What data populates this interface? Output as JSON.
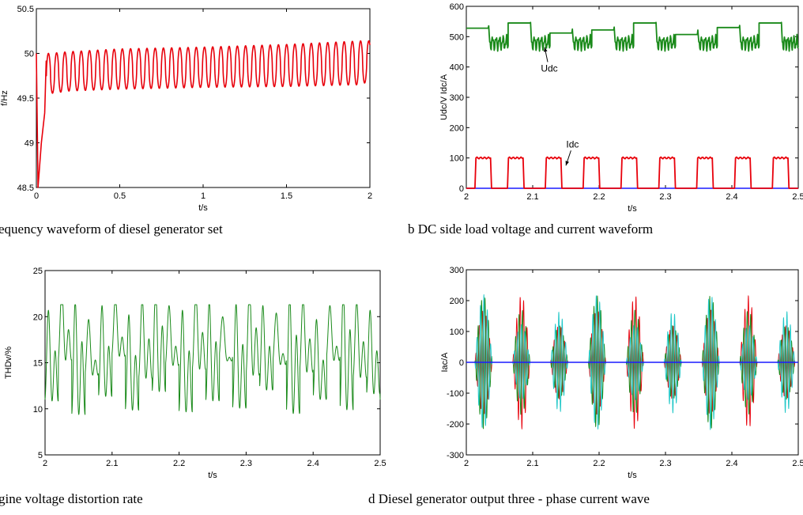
{
  "colors": {
    "red": "#e8000b",
    "green": "#1a8a1a",
    "dark_green": "#1f7a1f",
    "blue": "#1a1aff",
    "cyan": "#1fc7c7",
    "black": "#000000"
  },
  "captions": {
    "a": "equency waveform of diesel generator set",
    "b": "b DC side load voltage and current waveform",
    "c": "gine voltage distortion rate",
    "d": "d Diesel generator output three - phase current wave"
  },
  "chart_data": [
    {
      "id": "a",
      "type": "line",
      "xlabel": "t/s",
      "ylabel": "f/Hz",
      "xlim": [
        0,
        2
      ],
      "ylim": [
        48.5,
        50.5
      ],
      "xticks": [
        "0",
        "0.5",
        "1",
        "1.5",
        "2"
      ],
      "xtick_values": [
        0,
        0.5,
        1,
        1.5,
        2
      ],
      "yticks": [
        "48.5",
        "49",
        "49.5",
        "50",
        "50.5"
      ],
      "ytick_values": [
        48.5,
        49,
        49.5,
        50,
        50.5
      ],
      "series": [
        {
          "color": "#e8000b",
          "description": "initial dip to ~48.5 Hz then oscillation ~49.6–50.1 Hz, ~20 Hz ripple",
          "x": [
            0,
            0.01,
            0.03,
            0.06,
            0.08,
            0.2,
            0.5,
            1.0,
            1.5,
            1.95,
            2.0
          ],
          "y_min": [
            50.0,
            48.5,
            49.0,
            49.5,
            49.55,
            49.58,
            49.6,
            49.62,
            49.63,
            49.65,
            49.7
          ],
          "y_max": [
            50.0,
            48.6,
            49.7,
            50.0,
            50.0,
            50.02,
            50.05,
            50.07,
            50.1,
            50.14,
            50.14
          ]
        }
      ],
      "annotations": []
    },
    {
      "id": "b",
      "type": "line",
      "xlabel": "t/s",
      "ylabel": "Udc/V  Idc/A",
      "xlim": [
        2,
        2.5
      ],
      "ylim": [
        0,
        600
      ],
      "xticks": [
        "2",
        "2.1",
        "2.2",
        "2.3",
        "2.4",
        "2.5"
      ],
      "xtick_values": [
        2,
        2.1,
        2.2,
        2.3,
        2.4,
        2.5
      ],
      "yticks": [
        "0",
        "100",
        "200",
        "300",
        "400",
        "500",
        "600"
      ],
      "ytick_values": [
        0,
        100,
        200,
        300,
        400,
        500,
        600
      ],
      "series": [
        {
          "name": "Udc",
          "color": "#1a8a1a",
          "x_on": [
            2.0,
            2.063,
            2.126,
            2.189,
            2.252,
            2.315,
            2.378,
            2.441
          ],
          "high_values": [
            528,
            545,
            512,
            522,
            545,
            507,
            530,
            545
          ],
          "low_value": 480
        },
        {
          "name": "Idc",
          "color": "#e8000b",
          "pulse_starts": [
            2.013,
            2.062,
            2.119,
            2.176,
            2.233,
            2.29,
            2.347,
            2.404,
            2.461
          ],
          "pulse_width": 0.025,
          "high": 100,
          "low": 0
        },
        {
          "name": "",
          "color": "#1a1aff",
          "constant": 0
        }
      ],
      "annotations": [
        {
          "text": "Udc",
          "x": 2.125,
          "y": 385,
          "arrow_to": [
            2.118,
            465
          ]
        },
        {
          "text": "Idc",
          "x": 2.16,
          "y": 135,
          "arrow_to": [
            2.15,
            75
          ]
        }
      ]
    },
    {
      "id": "c",
      "type": "line",
      "xlabel": "t/s",
      "ylabel": "THDv/%",
      "xlim": [
        2,
        2.5
      ],
      "ylim": [
        5,
        25
      ],
      "xticks": [
        "2",
        "2.1",
        "2.2",
        "2.3",
        "2.4",
        "2.5"
      ],
      "xtick_values": [
        2,
        2.1,
        2.2,
        2.3,
        2.4,
        2.5
      ],
      "yticks": [
        "5",
        "10",
        "15",
        "20",
        "25"
      ],
      "ytick_values": [
        5,
        10,
        15,
        20,
        25
      ],
      "series": [
        {
          "color": "#1a8a1a",
          "description": "oscillating ~10–21 %, roughly 100 Hz oscillation",
          "peak_values": [
            18.5,
            20.8,
            19.5,
            17.5,
            19.0,
            20.0,
            18.0,
            19.8,
            21.2,
            19.0,
            18.5,
            20.5,
            19.5,
            17.8,
            19.2,
            21.0,
            19.0,
            18.2,
            20.2,
            19.8,
            17.5,
            19.0,
            20.8,
            19.5,
            18.5
          ],
          "trough_values": [
            11.0,
            15.5,
            9.5,
            14.0,
            11.5,
            16.0,
            10.0,
            13.5,
            12.0,
            15.0,
            9.8,
            14.5,
            11.0,
            15.8,
            10.2,
            13.8,
            12.2,
            15.2,
            9.6,
            14.2,
            11.2,
            15.6,
            10.0,
            13.6,
            11.8
          ]
        }
      ],
      "annotations": []
    },
    {
      "id": "d",
      "type": "line",
      "xlabel": "t/s",
      "ylabel": "Iac/A",
      "xlim": [
        2,
        2.5
      ],
      "ylim": [
        -300,
        300
      ],
      "xticks": [
        "2",
        "2.1",
        "2.2",
        "2.3",
        "2.4",
        "2.5"
      ],
      "xtick_values": [
        2,
        2.1,
        2.2,
        2.3,
        2.4,
        2.5
      ],
      "yticks": [
        "-300",
        "-200",
        "-100",
        "0",
        "100",
        "200",
        "300"
      ],
      "ytick_values": [
        -300,
        -200,
        -100,
        0,
        100,
        200,
        300
      ],
      "series": [
        {
          "color": "#e8000b",
          "phase": 0
        },
        {
          "color": "#1a8a1a",
          "phase": 1
        },
        {
          "color": "#1fc7c7",
          "phase": 2
        },
        {
          "color": "#1a1aff",
          "phase": 3
        }
      ],
      "bursts": {
        "starts": [
          2.013,
          2.07,
          2.127,
          2.184,
          2.241,
          2.298,
          2.355,
          2.412,
          2.469
        ],
        "width": 0.026,
        "peak": 225
      },
      "annotations": []
    }
  ]
}
